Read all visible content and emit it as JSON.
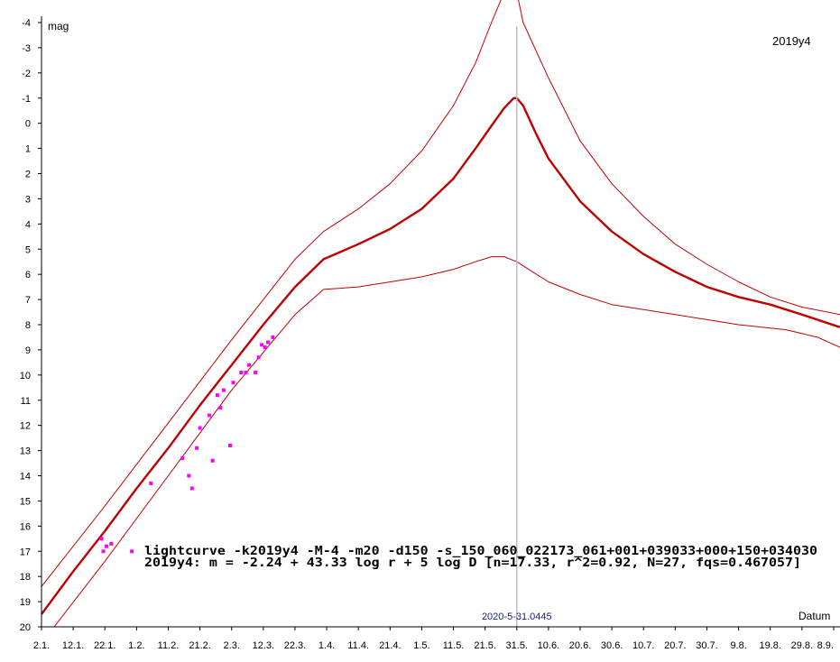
{
  "chart_data": {
    "type": "line",
    "title": "2019y4",
    "ylabel": "mag",
    "xlabel": "Datum",
    "ylim": [
      20,
      -4
    ],
    "y_inverted": true,
    "y_ticks": [
      -4,
      -3,
      -2,
      -1,
      0,
      1,
      2,
      3,
      4,
      5,
      6,
      7,
      8,
      9,
      10,
      11,
      12,
      13,
      14,
      15,
      16,
      17,
      18,
      19,
      20
    ],
    "y_tick_labels": [
      "-4",
      "-3",
      "-2",
      "-1",
      "0",
      "1",
      "2",
      "3",
      "4",
      "5",
      "6",
      "7",
      "8",
      "9",
      "10",
      "11",
      "12",
      "13",
      "14",
      "15",
      "16",
      "17",
      "18",
      "19",
      "20"
    ],
    "x_unit": "days from 2.1.",
    "x_ticks": [
      0,
      10,
      20,
      30,
      40,
      50,
      60,
      70,
      80,
      90,
      100,
      110,
      120,
      130,
      140,
      150,
      160,
      170,
      180,
      190,
      200,
      210,
      220,
      230,
      240,
      250
    ],
    "x_tick_labels": [
      "2.1.",
      "12.1.",
      "22.1.",
      "1.2.",
      "11.2.",
      "21.2.",
      "2.3.",
      "12.3.",
      "22.3.",
      "1.4.",
      "11.4.",
      "21.4.",
      "1.5.",
      "11.5.",
      "21.5.",
      "31.5.",
      "10.6.",
      "20.6.",
      "30.6.",
      "10.7.",
      "20.7.",
      "30.7.",
      "9.8.",
      "19.8.",
      "29.8.",
      "8.9."
    ],
    "xlim": [
      0,
      252
    ],
    "marker_x": 150,
    "marker_label": "2020-5-31.0445",
    "annotations": [
      "lightcurve -k2019y4 -M-4 -m20 -d150 -s_150_060_022173_061+001+039033+000+150+034030",
      "2019y4: m = -2.24 + 43.33 log r + 5 log D [n=17.33, r^2=0.92, N=27, fqs=0.467057]"
    ],
    "colors": {
      "curve": "#c00000",
      "points": "#ff00ff",
      "marker": "#bdbdbd",
      "marker_label": "#1a237e"
    },
    "series": [
      {
        "role": "main",
        "x": [
          0,
          10,
          20,
          30,
          40,
          50,
          60,
          70,
          80,
          89,
          100,
          110,
          120,
          130,
          137,
          142,
          146,
          149,
          150,
          152,
          156,
          160,
          170,
          180,
          190,
          200,
          210,
          220,
          230,
          240,
          252
        ],
        "y": [
          19.5,
          17.8,
          16.2,
          14.5,
          12.9,
          11.2,
          9.6,
          8.0,
          6.5,
          5.4,
          4.8,
          4.2,
          3.4,
          2.2,
          1.0,
          0.1,
          -0.6,
          -1.0,
          -1.0,
          -0.7,
          0.4,
          1.4,
          3.1,
          4.3,
          5.2,
          5.9,
          6.5,
          6.9,
          7.2,
          7.6,
          8.1
        ]
      },
      {
        "role": "upper",
        "x": [
          0,
          20,
          40,
          60,
          80,
          89,
          100,
          110,
          120,
          130,
          137,
          142,
          146,
          150,
          152,
          160,
          170,
          180,
          190,
          200,
          210,
          220,
          230,
          240,
          252
        ],
        "y": [
          18.4,
          15.2,
          11.9,
          8.6,
          5.4,
          4.3,
          3.4,
          2.4,
          1.1,
          -0.7,
          -2.4,
          -4.0,
          -5.2,
          -5.2,
          -4.0,
          -1.8,
          0.7,
          2.4,
          3.7,
          4.8,
          5.6,
          6.3,
          6.9,
          7.3,
          7.6
        ]
      },
      {
        "role": "lower",
        "x": [
          0,
          4,
          20,
          40,
          60,
          80,
          89,
          100,
          120,
          130,
          137,
          142,
          146,
          150,
          155,
          160,
          170,
          180,
          190,
          200,
          210,
          220,
          235,
          245,
          252
        ],
        "y": [
          20.5,
          20.0,
          17.4,
          14.0,
          10.6,
          7.6,
          6.6,
          6.5,
          6.1,
          5.8,
          5.5,
          5.3,
          5.3,
          5.5,
          5.9,
          6.3,
          6.8,
          7.2,
          7.4,
          7.6,
          7.8,
          8.0,
          8.2,
          8.5,
          8.9
        ]
      }
    ],
    "points": {
      "x": [
        19,
        19.5,
        20.5,
        22,
        28.5,
        34.5,
        44.5,
        46.5,
        47.5,
        49,
        50,
        53,
        54,
        55.5,
        56.5,
        57.5,
        59.5,
        60.5,
        63,
        64.5,
        65.5,
        67.5,
        68.5,
        69.5,
        70.5,
        71.5,
        73
      ],
      "y": [
        16.5,
        17.0,
        16.8,
        16.7,
        17.0,
        14.3,
        13.3,
        14.0,
        14.5,
        12.9,
        12.1,
        11.6,
        13.4,
        10.8,
        11.3,
        10.6,
        12.8,
        10.3,
        9.9,
        9.9,
        9.6,
        9.9,
        9.3,
        8.8,
        8.9,
        8.7,
        8.5
      ]
    }
  }
}
